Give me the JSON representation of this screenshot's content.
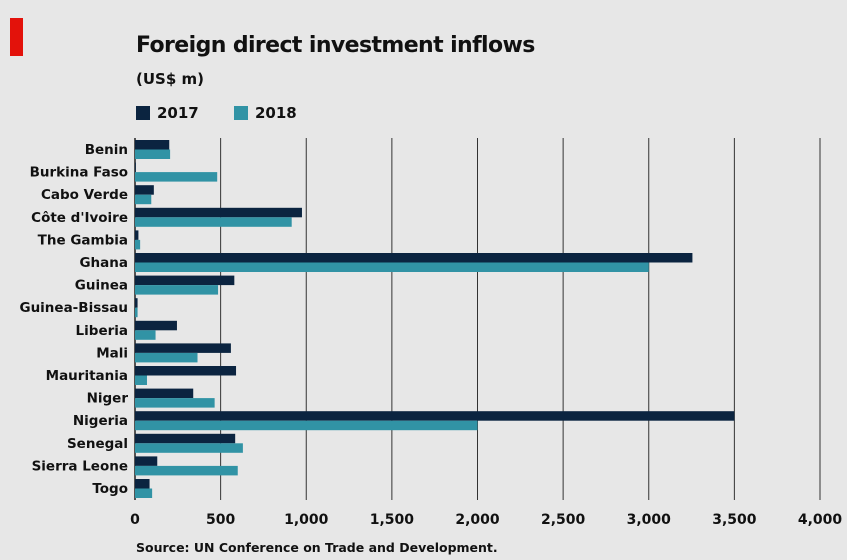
{
  "chart_data": {
    "type": "bar",
    "orientation": "horizontal",
    "title": "Foreign direct investment inflows",
    "subtitle": "(US$ m)",
    "source": "Source: UN Conference on Trade and Development.",
    "categories": [
      "Benin",
      "Burkina Faso",
      "Cabo Verde",
      "Côte d'Ivoire",
      "The Gambia",
      "Ghana",
      "Guinea",
      "Guinea-Bissau",
      "Liberia",
      "Mali",
      "Mauritania",
      "Niger",
      "Nigeria",
      "Senegal",
      "Sierra Leone",
      "Togo"
    ],
    "series": [
      {
        "name": "2017",
        "color": "#0b2440",
        "values": [
          200,
          5,
          110,
          975,
          20,
          3255,
          580,
          15,
          245,
          560,
          590,
          340,
          3500,
          585,
          130,
          85
        ]
      },
      {
        "name": "2018",
        "color": "#3193a5",
        "values": [
          205,
          480,
          95,
          915,
          30,
          3000,
          485,
          15,
          120,
          365,
          70,
          465,
          2000,
          630,
          600,
          100
        ]
      }
    ],
    "xlim": [
      0,
      4000
    ],
    "xticks": [
      0,
      500,
      1000,
      1500,
      2000,
      2500,
      3000,
      3500,
      4000
    ],
    "xtick_labels": [
      "0",
      "500",
      "1,000",
      "1,500",
      "2,000",
      "2,500",
      "3,000",
      "3,500",
      "4,000"
    ],
    "grid": "vertical",
    "legend_position": "top-left"
  }
}
